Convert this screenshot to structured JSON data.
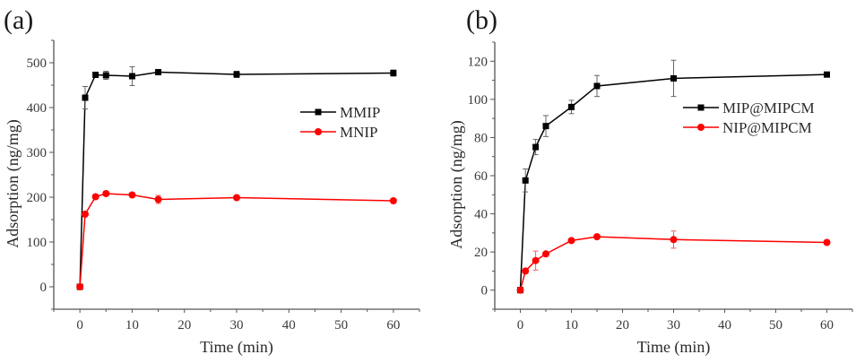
{
  "chart_data": [
    {
      "type": "line",
      "panel_label": "(a)",
      "title": "",
      "xlabel": "Time (min)",
      "ylabel": "Adsorption (ng/mg)",
      "xlim": [
        -5,
        65
      ],
      "ylim": [
        -50,
        550
      ],
      "xticks": [
        0,
        10,
        20,
        30,
        40,
        50,
        60
      ],
      "yticks": [
        0,
        100,
        200,
        300,
        400,
        500
      ],
      "grid": false,
      "legend_position": "center-right",
      "x": [
        0,
        1,
        3,
        5,
        10,
        15,
        30,
        60
      ],
      "series": [
        {
          "name": "MMIP",
          "color": "#000000",
          "marker": "square",
          "values": [
            0,
            422,
            473,
            472,
            470,
            479,
            474,
            477
          ],
          "errors": [
            0,
            25,
            4,
            9,
            21,
            3,
            7,
            7
          ]
        },
        {
          "name": "MNIP",
          "color": "#ff0000",
          "marker": "circle",
          "values": [
            0,
            162,
            201,
            208,
            205,
            195,
            199,
            192
          ],
          "errors": [
            0,
            4,
            5,
            5,
            4,
            9,
            4,
            4
          ]
        }
      ]
    },
    {
      "type": "line",
      "panel_label": "(b)",
      "title": "",
      "xlabel": "Time (min)",
      "ylabel": "Adsorption (ng/mg)",
      "xlim": [
        -5,
        65
      ],
      "ylim": [
        -10,
        130
      ],
      "xticks": [
        0,
        10,
        20,
        30,
        40,
        50,
        60
      ],
      "yticks": [
        0,
        20,
        40,
        60,
        80,
        100,
        120
      ],
      "grid": false,
      "legend_position": "center-right",
      "x": [
        0,
        1,
        3,
        5,
        10,
        15,
        30,
        60
      ],
      "series": [
        {
          "name": "MIP@MIPCM",
          "color": "#000000",
          "marker": "square",
          "values": [
            0,
            57.5,
            75,
            86,
            96,
            107,
            111,
            113
          ],
          "errors": [
            0,
            6,
            4,
            5.5,
            3.5,
            5.5,
            9.5,
            1
          ]
        },
        {
          "name": "NIP@MIPCM",
          "color": "#ff0000",
          "marker": "circle",
          "values": [
            0,
            10,
            15.5,
            19,
            26,
            28,
            26.5,
            25
          ],
          "errors": [
            0,
            1,
            5,
            1,
            1,
            1,
            4.5,
            1
          ]
        }
      ]
    }
  ]
}
